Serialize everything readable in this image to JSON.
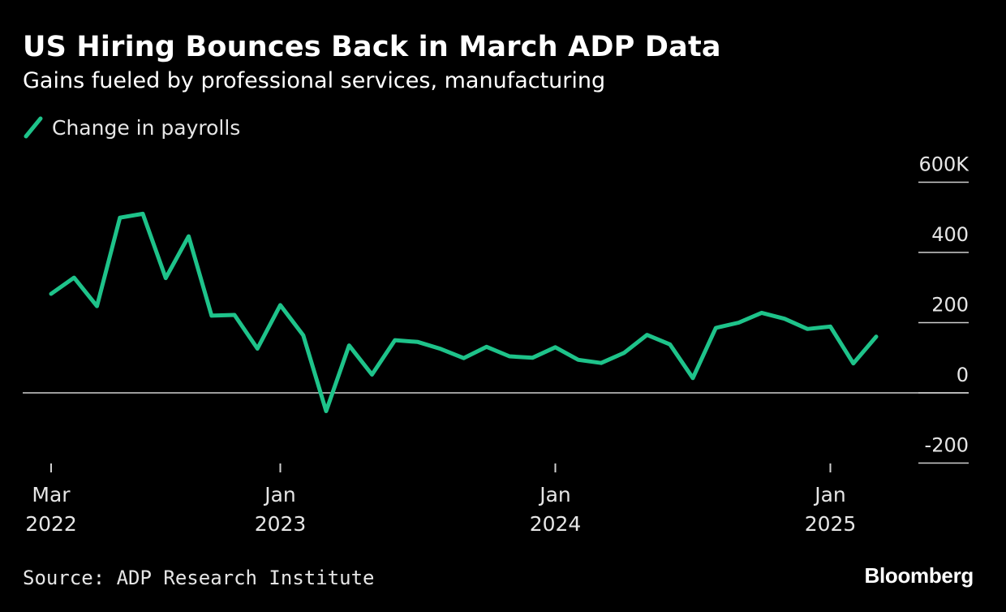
{
  "header": {
    "title": "US Hiring Bounces Back in March ADP Data",
    "subtitle": "Gains fueled by professional services, manufacturing"
  },
  "legend": {
    "label": "Change in payrolls",
    "color": "#1ec38a"
  },
  "footer": {
    "source": "Source: ADP Research Institute",
    "brand": "Bloomberg"
  },
  "chart_data": {
    "type": "line",
    "title": "US Hiring Bounces Back in March ADP Data",
    "subtitle": "Gains fueled by professional services, manufacturing",
    "xlabel": "",
    "ylabel": "",
    "ylim": [
      -200,
      600
    ],
    "yticks": [
      -200,
      0,
      200,
      400,
      600
    ],
    "ytick_labels": [
      "-200",
      "0",
      "200",
      "400",
      "600K"
    ],
    "xticks": [
      {
        "month": 0,
        "line1": "Mar",
        "line2": "2022"
      },
      {
        "month": 10,
        "line1": "Jan",
        "line2": "2023"
      },
      {
        "month": 22,
        "line1": "Jan",
        "line2": "2024"
      },
      {
        "month": 34,
        "line1": "Jan",
        "line2": "2025"
      }
    ],
    "grid": false,
    "series": [
      {
        "name": "Change in payrolls",
        "color": "#1ec38a",
        "x": [
          "2022-03",
          "2022-04",
          "2022-05",
          "2022-06",
          "2022-07",
          "2022-08",
          "2022-09",
          "2022-10",
          "2022-11",
          "2022-12",
          "2023-01",
          "2023-02",
          "2023-03",
          "2023-04",
          "2023-05",
          "2023-06",
          "2023-07",
          "2023-08",
          "2023-09",
          "2023-10",
          "2023-11",
          "2023-12",
          "2024-01",
          "2024-02",
          "2024-03",
          "2024-04",
          "2024-05",
          "2024-06",
          "2024-07",
          "2024-08",
          "2024-09",
          "2024-10",
          "2024-11",
          "2024-12",
          "2025-01",
          "2025-02",
          "2025-03"
        ],
        "values": [
          282,
          328,
          247,
          499,
          510,
          327,
          446,
          220,
          222,
          126,
          250,
          164,
          -52,
          135,
          52,
          150,
          145,
          125,
          99,
          131,
          104,
          100,
          130,
          94,
          85,
          114,
          165,
          138,
          42,
          185,
          200,
          228,
          211,
          182,
          189,
          84,
          160
        ]
      }
    ]
  }
}
